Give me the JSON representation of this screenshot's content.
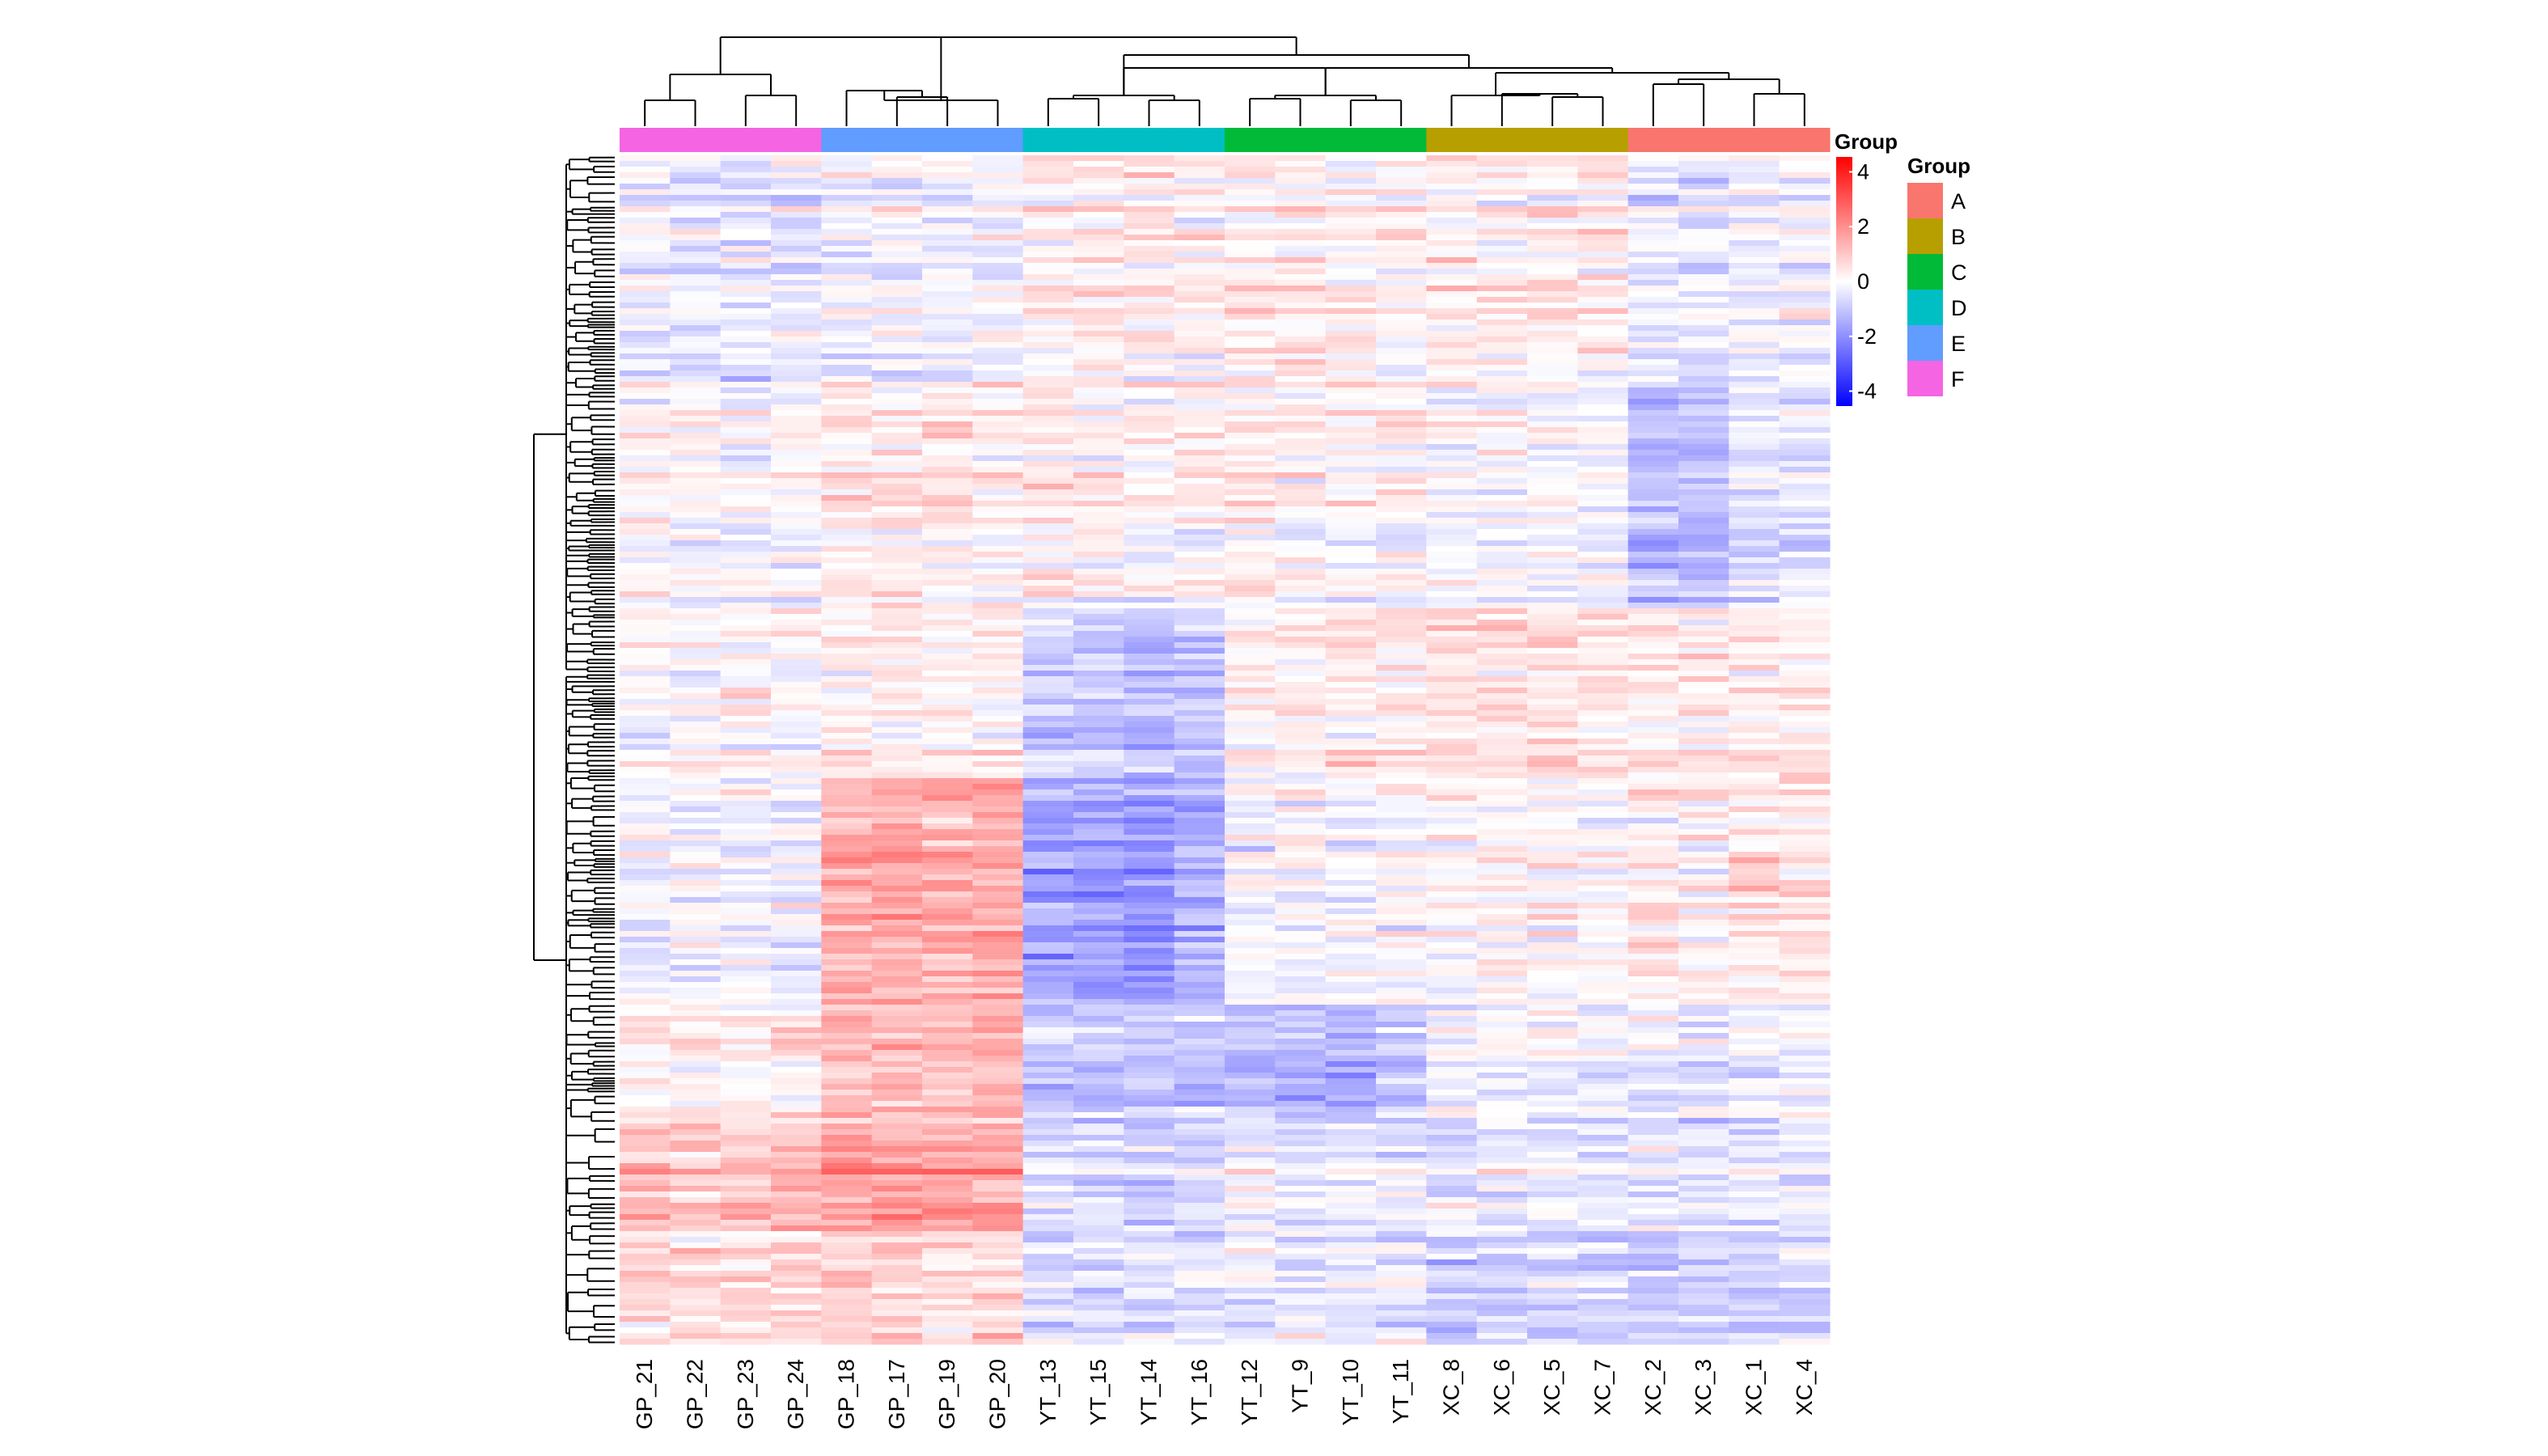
{
  "chart_data": {
    "type": "heatmap",
    "title": "",
    "xlabel": "",
    "ylabel": "",
    "columns": [
      "GP_21",
      "GP_22",
      "GP_23",
      "GP_24",
      "GP_18",
      "GP_17",
      "GP_19",
      "GP_20",
      "YT_13",
      "YT_15",
      "YT_14",
      "YT_16",
      "YT_12",
      "YT_9",
      "YT_10",
      "YT_11",
      "XC_8",
      "XC_6",
      "XC_5",
      "XC_7",
      "XC_2",
      "XC_3",
      "XC_1",
      "XC_4"
    ],
    "column_groups": [
      "F",
      "F",
      "F",
      "F",
      "E",
      "E",
      "E",
      "E",
      "D",
      "D",
      "D",
      "D",
      "C",
      "C",
      "C",
      "C",
      "B",
      "B",
      "B",
      "B",
      "A",
      "A",
      "A",
      "A"
    ],
    "color_scale": {
      "title": "Group",
      "min": -4,
      "max": 4,
      "ticks": [
        4,
        2,
        0,
        -2,
        -4
      ],
      "colors": {
        "low": "#0000ff",
        "mid": "#ffffff",
        "high": "#ff0000"
      }
    },
    "group_legend": {
      "title": "Group",
      "items": [
        {
          "label": "A",
          "color": "#F8766D"
        },
        {
          "label": "B",
          "color": "#B79F00"
        },
        {
          "label": "C",
          "color": "#00BA38"
        },
        {
          "label": "D",
          "color": "#00BFC4"
        },
        {
          "label": "E",
          "color": "#619CFF"
        },
        {
          "label": "F",
          "color": "#F564E3"
        }
      ]
    },
    "row_blocks": [
      {
        "rows": 40,
        "means": [
          -0.3,
          -0.4,
          -0.4,
          -0.3,
          -0.3,
          -0.2,
          -0.2,
          -0.1,
          0.3,
          0.3,
          0.3,
          0.2,
          0.3,
          0.3,
          0.2,
          0.2,
          0.3,
          0.3,
          0.3,
          0.3,
          -0.3,
          -0.4,
          -0.2,
          -0.2
        ]
      },
      {
        "rows": 40,
        "means": [
          0.1,
          0.1,
          0.0,
          0.1,
          0.4,
          0.4,
          0.4,
          0.3,
          0.3,
          0.2,
          0.2,
          0.2,
          0.3,
          0.2,
          0.2,
          0.2,
          0.0,
          0.0,
          0.0,
          0.0,
          -1.0,
          -0.8,
          -0.4,
          -0.3
        ]
      },
      {
        "rows": 30,
        "means": [
          0.1,
          0.1,
          0.1,
          0.0,
          0.3,
          0.3,
          0.3,
          0.2,
          -0.7,
          -0.8,
          -1.0,
          -0.9,
          0.2,
          0.2,
          0.3,
          0.4,
          0.6,
          0.5,
          0.5,
          0.5,
          0.3,
          0.4,
          0.4,
          0.4
        ]
      },
      {
        "rows": 40,
        "means": [
          -0.2,
          -0.2,
          -0.2,
          -0.2,
          1.2,
          1.3,
          1.3,
          1.3,
          -1.4,
          -1.5,
          -1.6,
          -1.3,
          -0.1,
          0.0,
          -0.1,
          0.1,
          0.0,
          0.1,
          0.0,
          0.0,
          0.3,
          0.2,
          0.4,
          0.4
        ]
      },
      {
        "rows": 20,
        "means": [
          0.2,
          0.2,
          0.2,
          0.2,
          1.1,
          1.1,
          1.1,
          1.1,
          -0.8,
          -0.8,
          -0.9,
          -0.8,
          -1.0,
          -1.0,
          -1.1,
          -0.8,
          -0.1,
          -0.1,
          -0.1,
          -0.2,
          -0.3,
          -0.4,
          -0.2,
          -0.2
        ]
      },
      {
        "rows": 20,
        "means": [
          0.9,
          0.9,
          0.9,
          1.0,
          1.5,
          1.6,
          1.5,
          1.4,
          -0.6,
          -0.6,
          -0.7,
          -0.6,
          -0.2,
          -0.2,
          -0.3,
          -0.2,
          -0.4,
          -0.3,
          -0.3,
          -0.4,
          -0.3,
          -0.4,
          -0.3,
          -0.3
        ]
      },
      {
        "rows": 20,
        "means": [
          0.6,
          0.6,
          0.6,
          0.6,
          0.7,
          0.7,
          0.6,
          0.6,
          -0.4,
          -0.5,
          -0.4,
          -0.4,
          -0.2,
          -0.2,
          -0.2,
          -0.2,
          -0.6,
          -0.6,
          -0.6,
          -0.7,
          -0.7,
          -0.7,
          -0.6,
          -0.6
        ]
      }
    ]
  }
}
